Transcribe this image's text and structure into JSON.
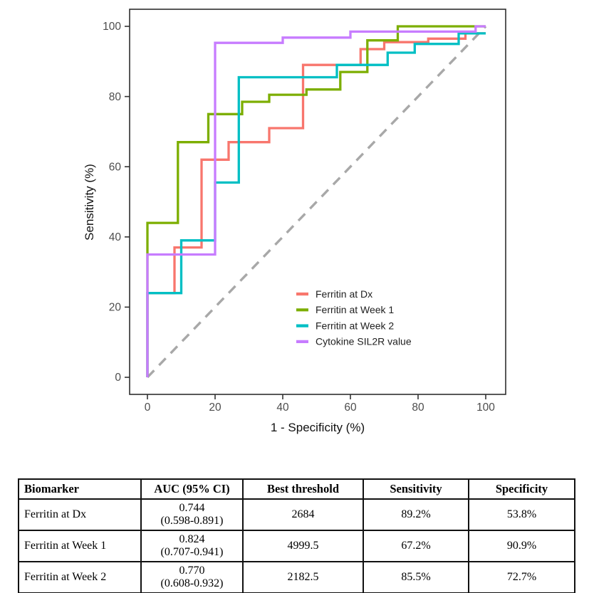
{
  "chart_data": {
    "type": "line",
    "subtype": "roc-step-curves",
    "title": "",
    "xlabel": "1 - Specificity (%)",
    "ylabel": "Sensitivity (%)",
    "xlim": [
      0,
      100
    ],
    "ylim": [
      0,
      100
    ],
    "x_ticks": [
      0,
      20,
      40,
      60,
      80,
      100
    ],
    "y_ticks": [
      0,
      20,
      40,
      60,
      80,
      100
    ],
    "grid": false,
    "legend_position": "inside-right-middle",
    "reference_line": {
      "name": "chance-diagonal",
      "style": "dashed",
      "color": "#a8a8a8",
      "from": [
        0,
        0
      ],
      "to": [
        100,
        100
      ]
    },
    "series": [
      {
        "name": "Ferritin at Dx",
        "color": "#F8766D",
        "points": [
          [
            0,
            0
          ],
          [
            0,
            24
          ],
          [
            8,
            24
          ],
          [
            8,
            37
          ],
          [
            16,
            37
          ],
          [
            16,
            62
          ],
          [
            24,
            62
          ],
          [
            24,
            67
          ],
          [
            36,
            67
          ],
          [
            36,
            71
          ],
          [
            46,
            71
          ],
          [
            46,
            89
          ],
          [
            63,
            89
          ],
          [
            63,
            93.5
          ],
          [
            70,
            93.5
          ],
          [
            70,
            95.5
          ],
          [
            83,
            95.5
          ],
          [
            83,
            96.5
          ],
          [
            94,
            96.5
          ],
          [
            94,
            98
          ],
          [
            100,
            98
          ]
        ]
      },
      {
        "name": "Ferritin at Week 1",
        "color": "#7CAE00",
        "points": [
          [
            0,
            0
          ],
          [
            0,
            44
          ],
          [
            9,
            44
          ],
          [
            9,
            67
          ],
          [
            18,
            67
          ],
          [
            18,
            75
          ],
          [
            28,
            75
          ],
          [
            28,
            78.5
          ],
          [
            36,
            78.5
          ],
          [
            36,
            80.5
          ],
          [
            47,
            80.5
          ],
          [
            47,
            82
          ],
          [
            57,
            82
          ],
          [
            57,
            87
          ],
          [
            65,
            87
          ],
          [
            65,
            96
          ],
          [
            74,
            96
          ],
          [
            74,
            100
          ],
          [
            100,
            100
          ]
        ]
      },
      {
        "name": "Ferritin at Week 2",
        "color": "#00BFC4",
        "points": [
          [
            0,
            0
          ],
          [
            0,
            24
          ],
          [
            10,
            24
          ],
          [
            10,
            39
          ],
          [
            20,
            39
          ],
          [
            20,
            55.5
          ],
          [
            27,
            55.5
          ],
          [
            27,
            85.5
          ],
          [
            56,
            85.5
          ],
          [
            56,
            89
          ],
          [
            71,
            89
          ],
          [
            71,
            92.5
          ],
          [
            79,
            92.5
          ],
          [
            79,
            95
          ],
          [
            92,
            95
          ],
          [
            92,
            98
          ],
          [
            100,
            98
          ]
        ]
      },
      {
        "name": "Cytokine SIL2R value",
        "color": "#C77CFF",
        "points": [
          [
            0,
            0
          ],
          [
            0,
            35
          ],
          [
            20,
            35
          ],
          [
            20,
            95.3
          ],
          [
            40,
            95.3
          ],
          [
            40,
            96.8
          ],
          [
            60,
            96.8
          ],
          [
            60,
            98.5
          ],
          [
            97,
            98.5
          ],
          [
            97,
            100
          ],
          [
            100,
            100
          ]
        ]
      }
    ]
  },
  "table": {
    "headers": [
      "Biomarker",
      "AUC (95% CI)",
      "Best threshold",
      "Sensitivity",
      "Specificity"
    ],
    "rows": [
      {
        "biomarker": "Ferritin at Dx",
        "auc": "0.744",
        "ci": "(0.598-0.891)",
        "threshold": "2684",
        "sensitivity": "89.2%",
        "specificity": "53.8%"
      },
      {
        "biomarker": "Ferritin at Week 1",
        "auc": "0.824",
        "ci": "(0.707-0.941)",
        "threshold": "4999.5",
        "sensitivity": "67.2%",
        "specificity": "90.9%"
      },
      {
        "biomarker": "Ferritin at Week 2",
        "auc": "0.770",
        "ci": "(0.608-0.932)",
        "threshold": "2182.5",
        "sensitivity": "85.5%",
        "specificity": "72.7%"
      }
    ]
  }
}
